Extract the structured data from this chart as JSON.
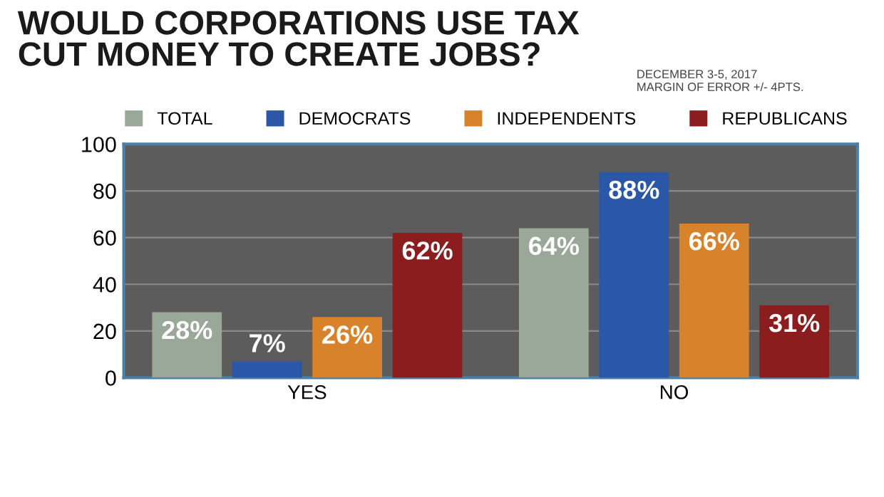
{
  "chart_data": {
    "type": "bar",
    "title": "WOULD CORPORATIONS USE TAX\nCUT MONEY TO CREATE JOBS?",
    "annotations": [
      "DECEMBER 3-5, 2017\nMARGIN OF ERROR +/- 4PTS."
    ],
    "categories": [
      "YES",
      "NO"
    ],
    "series": [
      {
        "name": "TOTAL",
        "color": "#9aa89a",
        "values": [
          28,
          64
        ],
        "value_labels": [
          "28%",
          "64%"
        ]
      },
      {
        "name": "DEMOCRATS",
        "color": "#2b57a8",
        "values": [
          7,
          88
        ],
        "value_labels": [
          "7%",
          "88%"
        ]
      },
      {
        "name": "INDEPENDENTS",
        "color": "#d8832c",
        "values": [
          26,
          66
        ],
        "value_labels": [
          "26%",
          "66%"
        ]
      },
      {
        "name": "REPUBLICANS",
        "color": "#8b1d1f",
        "values": [
          62,
          31
        ],
        "value_labels": [
          "62%",
          "31%"
        ]
      }
    ],
    "ylim": [
      0,
      100
    ],
    "yticks": [
      0,
      20,
      40,
      60,
      80,
      100
    ],
    "grid": "y",
    "legend": "top"
  }
}
